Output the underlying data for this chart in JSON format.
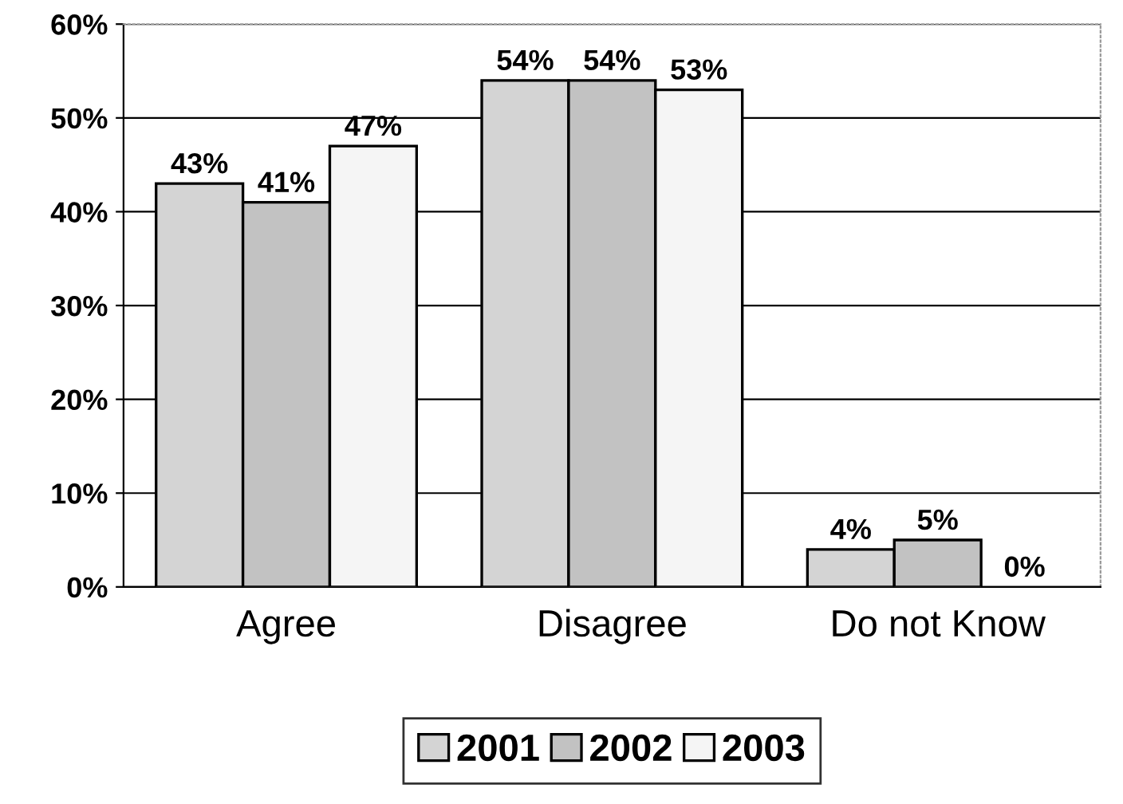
{
  "chart_data": {
    "type": "bar",
    "categories": [
      "Agree",
      "Disagree",
      "Do not Know"
    ],
    "series": [
      {
        "name": "2001",
        "color": "#d4d4d4",
        "values": [
          43,
          54,
          4
        ]
      },
      {
        "name": "2002",
        "color": "#c2c2c2",
        "values": [
          41,
          54,
          5
        ]
      },
      {
        "name": "2003",
        "color": "#f5f5f5",
        "values": [
          47,
          53,
          0
        ]
      }
    ],
    "ylim": [
      0,
      60
    ],
    "yticks": [
      {
        "value": 0,
        "label": "0%"
      },
      {
        "value": 10,
        "label": "10%"
      },
      {
        "value": 20,
        "label": "20%"
      },
      {
        "value": 30,
        "label": "30%"
      },
      {
        "value": 40,
        "label": "40%"
      },
      {
        "value": 50,
        "label": "50%"
      },
      {
        "value": 60,
        "label": "60%"
      }
    ],
    "value_labels": [
      [
        "43%",
        "54%",
        "4%"
      ],
      [
        "41%",
        "54%",
        "5%"
      ],
      [
        "47%",
        "53%",
        "0%"
      ]
    ],
    "grid": "y",
    "legend": "bottom"
  }
}
